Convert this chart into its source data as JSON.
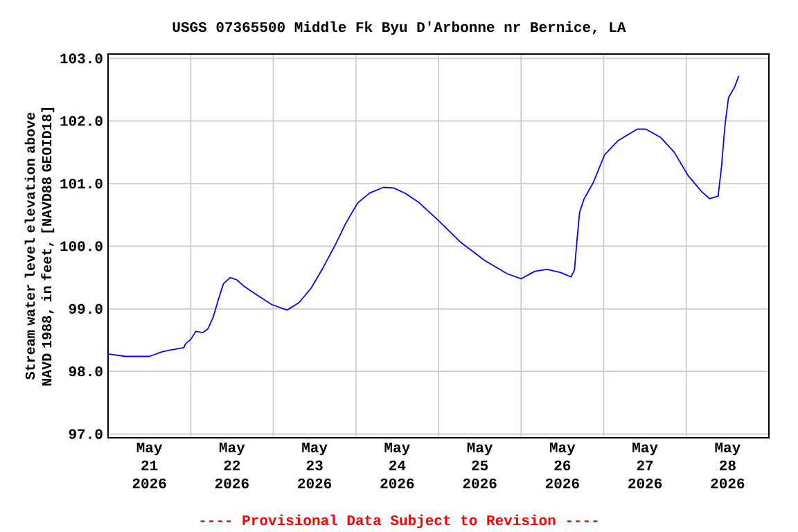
{
  "chart_data": {
    "type": "line",
    "title": "USGS 07365500 Middle Fk Byu D'Arbonne nr Bernice, LA",
    "ylabel": "Stream water level elevation above NAVD 1988, in feet, [NAVD88 GEOID18]",
    "annotations": [
      "---- Provisional Data Subject to Revision ----"
    ],
    "x": [
      "2026-05-21T00:00",
      "2026-05-21T05:00",
      "2026-05-21T12:00",
      "2026-05-21T15:30",
      "2026-05-21T18:00",
      "2026-05-21T22:00",
      "2026-05-21T22:30",
      "2026-05-22T00:00",
      "2026-05-22T01:30",
      "2026-05-22T03:30",
      "2026-05-22T05:00",
      "2026-05-22T06:30",
      "2026-05-22T08:00",
      "2026-05-22T09:30",
      "2026-05-22T11:30",
      "2026-05-22T13:30",
      "2026-05-22T15:30",
      "2026-05-22T19:00",
      "2026-05-22T23:30",
      "2026-05-23T04:00",
      "2026-05-23T07:30",
      "2026-05-23T11:00",
      "2026-05-23T14:30",
      "2026-05-23T18:00",
      "2026-05-23T21:00",
      "2026-05-24T00:30",
      "2026-05-24T04:00",
      "2026-05-24T08:00",
      "2026-05-24T11:00",
      "2026-05-24T14:30",
      "2026-05-24T18:30",
      "2026-05-25T00:00",
      "2026-05-25T06:30",
      "2026-05-25T13:30",
      "2026-05-25T20:00",
      "2026-05-26T00:00",
      "2026-05-26T04:00",
      "2026-05-26T07:30",
      "2026-05-26T11:30",
      "2026-05-26T14:30",
      "2026-05-26T15:30",
      "2026-05-26T16:15",
      "2026-05-26T17:00",
      "2026-05-26T18:15",
      "2026-05-26T21:00",
      "2026-05-27T00:15",
      "2026-05-27T04:15",
      "2026-05-27T09:45",
      "2026-05-27T12:15",
      "2026-05-27T16:30",
      "2026-05-27T20:30",
      "2026-05-28T00:30",
      "2026-05-28T04:30",
      "2026-05-28T06:45",
      "2026-05-28T09:15",
      "2026-05-28T10:15",
      "2026-05-28T11:15",
      "2026-05-28T12:15",
      "2026-05-28T14:00",
      "2026-05-28T15:15"
    ],
    "series": [
      {
        "color": "#0000ff",
        "values": [
          98.28,
          98.24,
          98.24,
          98.31,
          98.34,
          98.38,
          98.44,
          98.51,
          98.64,
          98.62,
          98.68,
          98.86,
          99.14,
          99.4,
          99.5,
          99.46,
          99.36,
          99.23,
          99.07,
          98.98,
          99.1,
          99.33,
          99.66,
          100.02,
          100.36,
          100.69,
          100.85,
          100.94,
          100.93,
          100.84,
          100.69,
          100.41,
          100.06,
          99.77,
          99.56,
          99.48,
          99.6,
          99.63,
          99.58,
          99.51,
          99.62,
          100.1,
          100.54,
          100.75,
          101.02,
          101.46,
          101.69,
          101.87,
          101.87,
          101.74,
          101.5,
          101.13,
          100.87,
          100.76,
          100.8,
          101.28,
          101.94,
          102.37,
          102.54,
          102.72
        ]
      }
    ],
    "xlim": [
      "2026-05-21T00:00",
      "2026-05-29T00:00"
    ],
    "xticks": [
      {
        "value": "2026-05-21T12:00",
        "label": "May 21 2026"
      },
      {
        "value": "2026-05-22T00:00",
        "label": null
      },
      {
        "value": "2026-05-22T12:00",
        "label": "May 22 2026"
      },
      {
        "value": "2026-05-23T00:00",
        "label": null
      },
      {
        "value": "2026-05-23T12:00",
        "label": "May 23 2026"
      },
      {
        "value": "2026-05-24T00:00",
        "label": null
      },
      {
        "value": "2026-05-24T12:00",
        "label": "May 24 2026"
      },
      {
        "value": "2026-05-25T00:00",
        "label": null
      },
      {
        "value": "2026-05-25T12:00",
        "label": "May 25 2026"
      },
      {
        "value": "2026-05-26T00:00",
        "label": null
      },
      {
        "value": "2026-05-26T12:00",
        "label": "May 26 2026"
      },
      {
        "value": "2026-05-27T00:00",
        "label": null
      },
      {
        "value": "2026-05-27T12:00",
        "label": "May 27 2026"
      },
      {
        "value": "2026-05-28T00:00",
        "label": null
      },
      {
        "value": "2026-05-28T12:00",
        "label": "May 28 2026"
      }
    ],
    "ylim": [
      96.94,
      103.07
    ],
    "yticks": [
      {
        "value": 97,
        "label": "97.0"
      },
      {
        "value": 98,
        "label": "98.0"
      },
      {
        "value": 99,
        "label": "99.0"
      },
      {
        "value": 100,
        "label": "100.0"
      },
      {
        "value": 101,
        "label": "101.0"
      },
      {
        "value": 102,
        "label": "102.0"
      },
      {
        "value": 103,
        "label": "103.0"
      }
    ],
    "grid": true,
    "marker": "none",
    "line_style": "solid"
  }
}
